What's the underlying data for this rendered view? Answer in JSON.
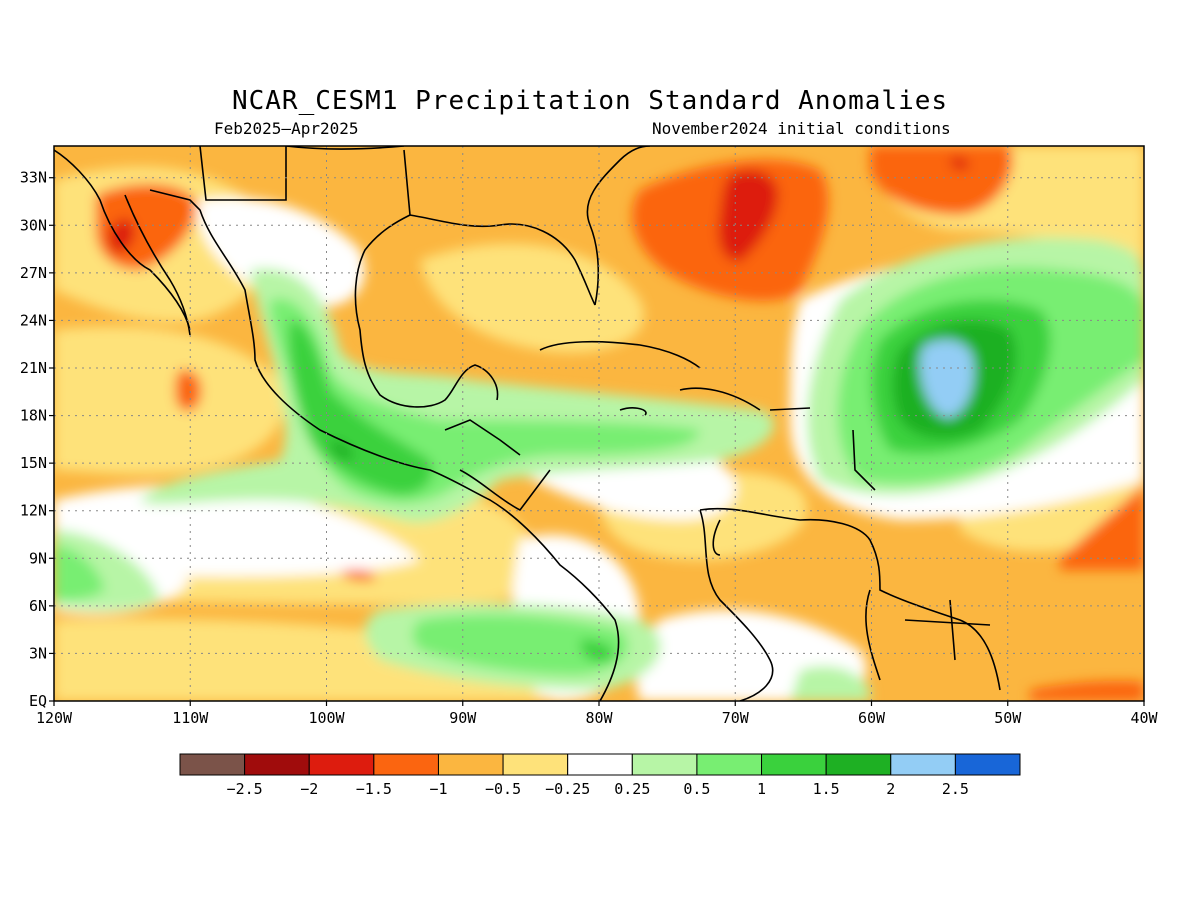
{
  "title": "NCAR_CESM1 Precipitation Standard Anomalies",
  "subtitle_left": "Feb2025–Apr2025",
  "subtitle_right": "November2024 initial conditions",
  "map": {
    "lat_labels": [
      "33N",
      "30N",
      "27N",
      "24N",
      "21N",
      "18N",
      "15N",
      "12N",
      "9N",
      "6N",
      "3N",
      "EQ"
    ],
    "lon_labels": [
      "120W",
      "110W",
      "100W",
      "90W",
      "80W",
      "70W",
      "60W",
      "50W",
      "40W"
    ],
    "extent": {
      "lon": [
        -120,
        -40
      ],
      "lat": [
        0,
        35
      ]
    },
    "grid": "dotted"
  },
  "colorbar": {
    "colors": [
      "#7b5349",
      "#a00c0c",
      "#dd1c0e",
      "#fb6510",
      "#fbb640",
      "#fee27a",
      "#ffffff",
      "#b7f5a6",
      "#78ee72",
      "#3ad13d",
      "#1eb023",
      "#93cdf5",
      "#1866d8"
    ],
    "labels": [
      "−2.5",
      "−2",
      "−1.5",
      "−1",
      "−0.5",
      "−0.25",
      "0.25",
      "0.5",
      "1",
      "1.5",
      "2",
      "2.5"
    ]
  }
}
